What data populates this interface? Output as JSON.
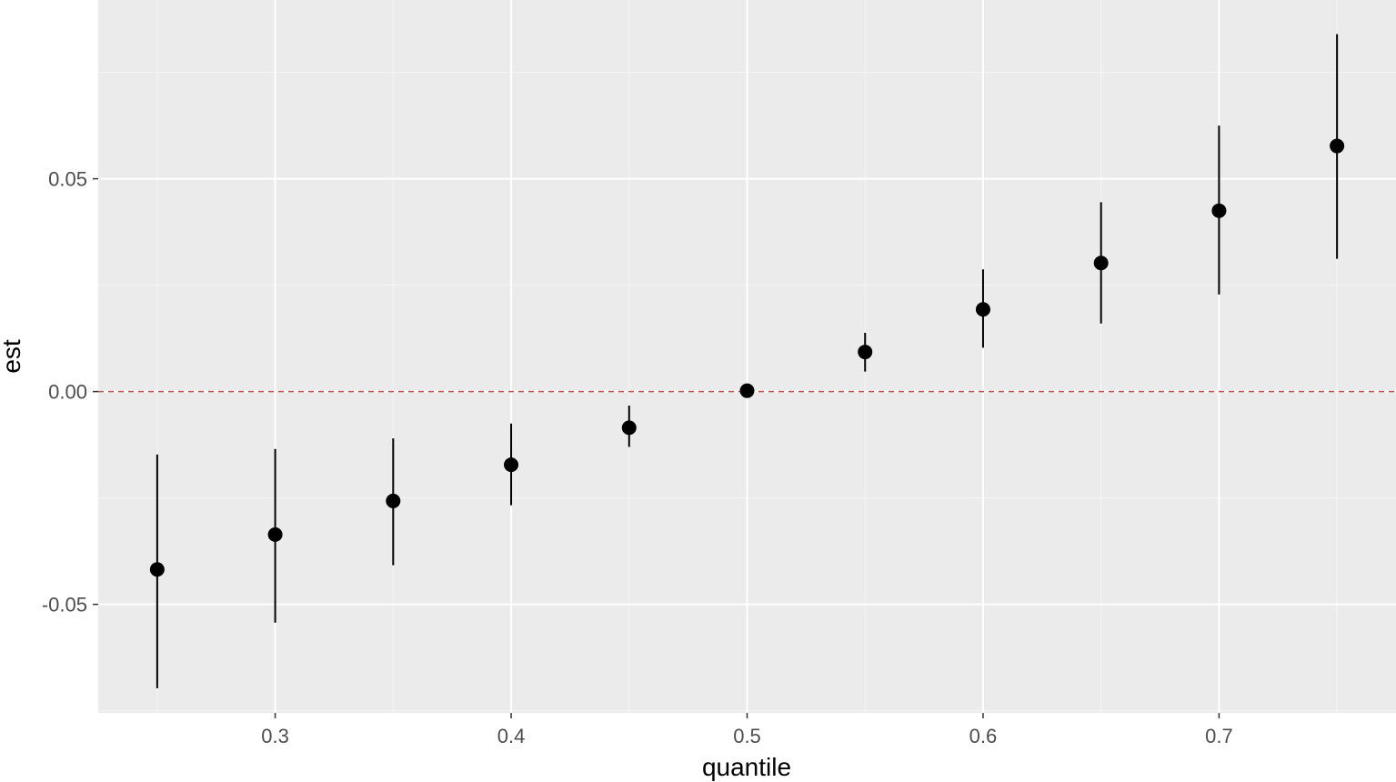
{
  "chart_data": {
    "type": "scatter",
    "title": "",
    "xlabel": "quantile",
    "ylabel": "est",
    "xlim": [
      0.225,
      0.775
    ],
    "ylim": [
      -0.0755,
      0.092
    ],
    "x_ticks": [
      0.3,
      0.4,
      0.5,
      0.6,
      0.7
    ],
    "x_tick_labels": [
      "0.3",
      "0.4",
      "0.5",
      "0.6",
      "0.7"
    ],
    "y_ticks": [
      -0.05,
      0.0,
      0.05
    ],
    "y_tick_labels": [
      "-0.05",
      "0.00",
      "0.05"
    ],
    "grid": true,
    "legend": "none",
    "reference_line": {
      "y": 0.0,
      "style": "dashed",
      "color": "#c0504d"
    },
    "points": [
      {
        "x": 0.25,
        "y": -0.0418,
        "lower": -0.0697,
        "upper": -0.0148
      },
      {
        "x": 0.3,
        "y": -0.0336,
        "lower": -0.0543,
        "upper": -0.0135
      },
      {
        "x": 0.35,
        "y": -0.0257,
        "lower": -0.0408,
        "upper": -0.011
      },
      {
        "x": 0.4,
        "y": -0.0172,
        "lower": -0.0267,
        "upper": -0.0075
      },
      {
        "x": 0.45,
        "y": -0.0085,
        "lower": -0.013,
        "upper": -0.0033
      },
      {
        "x": 0.5,
        "y": 0.0002,
        "lower": 0.0002,
        "upper": 0.0002
      },
      {
        "x": 0.55,
        "y": 0.0093,
        "lower": 0.0047,
        "upper": 0.0138
      },
      {
        "x": 0.6,
        "y": 0.0193,
        "lower": 0.0103,
        "upper": 0.0287
      },
      {
        "x": 0.65,
        "y": 0.0302,
        "lower": 0.016,
        "upper": 0.0445
      },
      {
        "x": 0.7,
        "y": 0.0425,
        "lower": 0.0228,
        "upper": 0.0625
      },
      {
        "x": 0.75,
        "y": 0.0577,
        "lower": 0.0312,
        "upper": 0.084
      }
    ]
  },
  "colors": {
    "panel": "#ebebeb",
    "grid_major": "#ffffff",
    "grid_minor": "#f4f4f4",
    "point": "#000000",
    "errorbar": "#000000",
    "reference_line": "#c0504d"
  }
}
